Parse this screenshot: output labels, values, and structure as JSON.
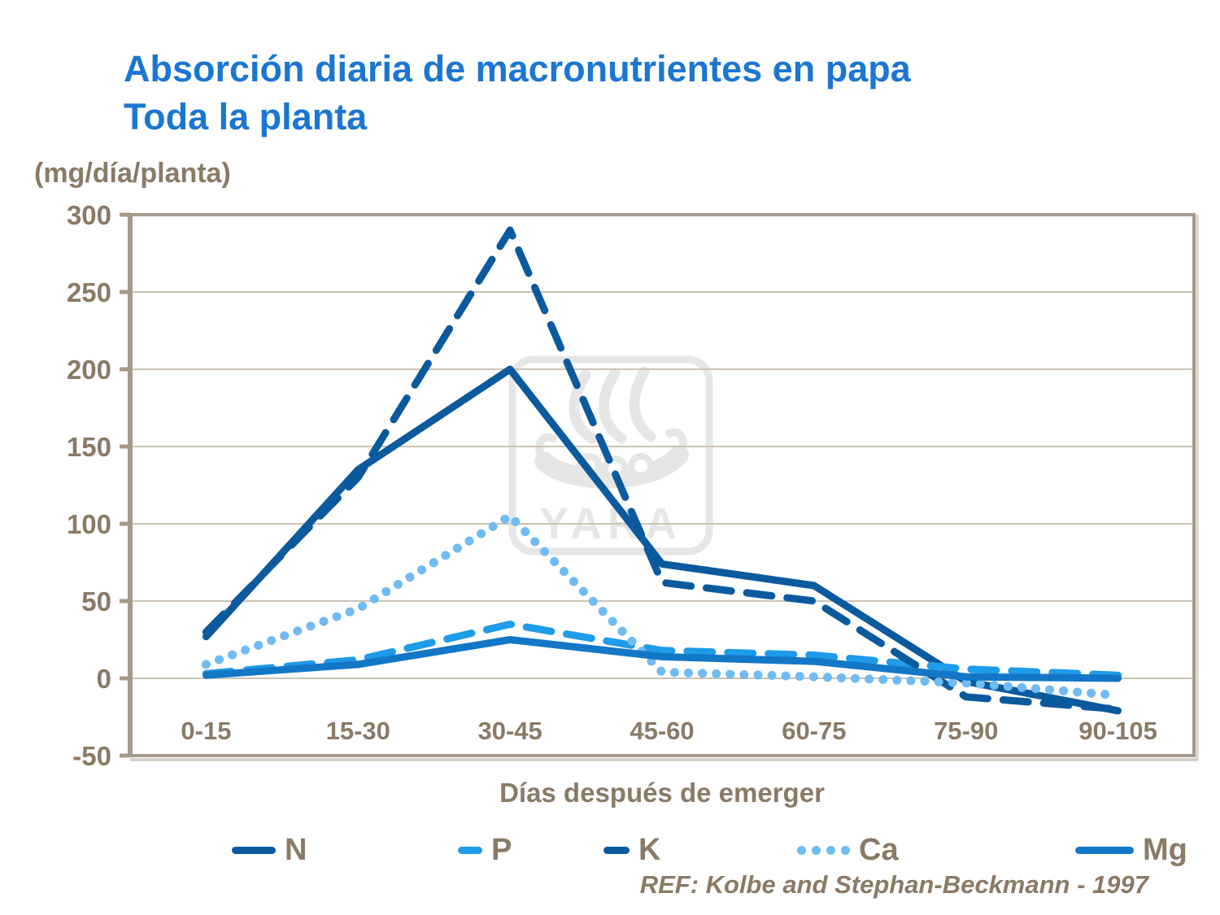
{
  "title": {
    "line1": "Absorción diaria de macronutrientes en papa",
    "line2": "Toda la planta"
  },
  "y_axis_unit": "(mg/día/planta)",
  "x_axis_title": "Días después de emerger",
  "reference": "REF: Kolbe and Stephan-Beckmann - 1997",
  "watermark_text": "YARA",
  "colors": {
    "title_blue": "#1B76D2",
    "axis_text_brown": "#8A7A66",
    "grid_line": "#CCC3B6",
    "plot_border": "#A6998A",
    "border_shadow": "#D8D0C5",
    "dark_blue": "#0B5A9E",
    "bright_blue": "#1E9BE9",
    "light_blue": "#6FBBF2",
    "medium_blue": "#1377C8",
    "watermark_gray": "#E6E6E6"
  },
  "chart_data": {
    "type": "line",
    "title": "Absorción diaria de macronutrientes en papa — Toda la planta",
    "xlabel": "Días después de emerger",
    "ylabel": "(mg/día/planta)",
    "categories": [
      "0-15",
      "15-30",
      "30-45",
      "45-60",
      "60-75",
      "75-90",
      "90-105"
    ],
    "y_ticks": [
      300,
      250,
      200,
      150,
      100,
      50,
      0,
      -50
    ],
    "ylim": [
      -50,
      300
    ],
    "grid": true,
    "legend_position": "bottom",
    "series": [
      {
        "name": "N",
        "style": "solid",
        "color_key": "dark_blue",
        "values": [
          27,
          135,
          200,
          74,
          60,
          -2,
          -21
        ]
      },
      {
        "name": "P",
        "style": "dashed",
        "color_key": "bright_blue",
        "values": [
          3,
          12,
          35,
          18,
          15,
          6,
          2
        ]
      },
      {
        "name": "K",
        "style": "dashed",
        "color_key": "dark_blue",
        "values": [
          30,
          130,
          290,
          62,
          50,
          -12,
          -20
        ]
      },
      {
        "name": "Ca",
        "style": "dotted",
        "color_key": "light_blue",
        "values": [
          9,
          45,
          105,
          4,
          1,
          -3,
          -11
        ]
      },
      {
        "name": "Mg",
        "style": "solid",
        "color_key": "medium_blue",
        "values": [
          2,
          9,
          25,
          14,
          11,
          1,
          0
        ]
      }
    ]
  }
}
